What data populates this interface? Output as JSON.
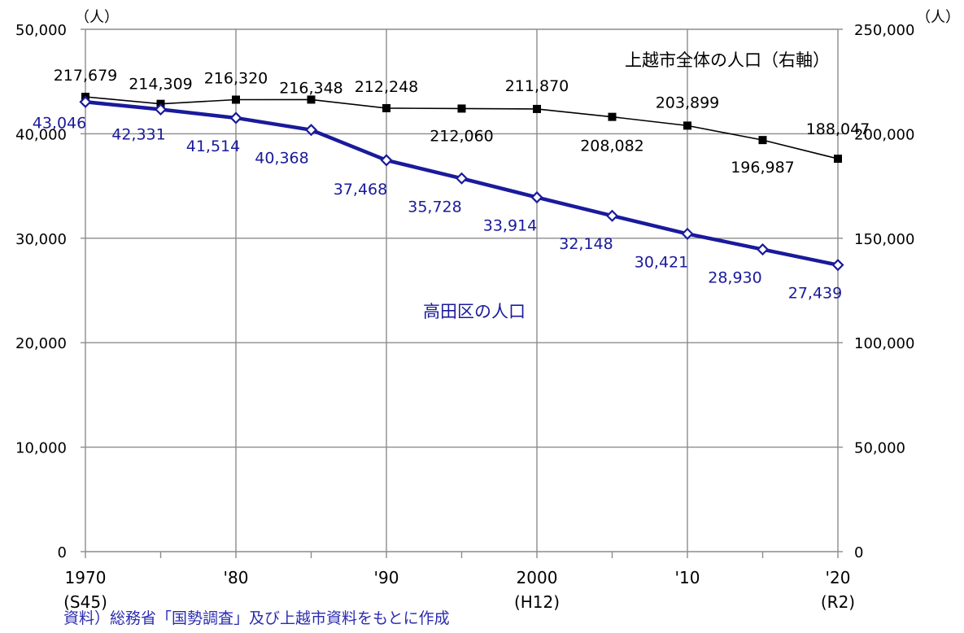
{
  "chart_data": {
    "type": "line",
    "x": [
      "1970",
      "1975",
      "1980",
      "1985",
      "1990",
      "1995",
      "2000",
      "2005",
      "2010",
      "2015",
      "2020"
    ],
    "x_tick_labels": [
      {
        "x": "1970",
        "lines": [
          "1970",
          "(S45)"
        ]
      },
      {
        "x": "1980",
        "lines": [
          "'80"
        ]
      },
      {
        "x": "1990",
        "lines": [
          "'90"
        ]
      },
      {
        "x": "2000",
        "lines": [
          "2000",
          "(H12)"
        ]
      },
      {
        "x": "2010",
        "lines": [
          "'10"
        ]
      },
      {
        "x": "2020",
        "lines": [
          "'20",
          "(R2)"
        ]
      }
    ],
    "y_left": {
      "unit": "（人）",
      "range": [
        0,
        50000
      ],
      "ticks": [
        "0",
        "10,000",
        "20,000",
        "30,000",
        "40,000",
        "50,000"
      ]
    },
    "y_right": {
      "unit": "（人）",
      "range": [
        0,
        250000
      ],
      "ticks": [
        "0",
        "50,000",
        "100,000",
        "150,000",
        "200,000",
        "250,000"
      ]
    },
    "grid": true,
    "series": [
      {
        "name": "上越市全体の人口（右軸）",
        "axis": "right",
        "color": "#000000",
        "marker": "filled-square",
        "values": [
          217679,
          214309,
          216320,
          216348,
          212248,
          212060,
          211870,
          208082,
          203899,
          196987,
          188047
        ],
        "labels": [
          "217,679",
          "214,309",
          "216,320",
          "216,348",
          "212,248",
          "212,060",
          "211,870",
          "208,082",
          "203,899",
          "196,987",
          "188,047"
        ]
      },
      {
        "name": "高田区の人口",
        "axis": "left",
        "color": "#1a1a9c",
        "marker": "hollow-diamond",
        "values": [
          43046,
          42331,
          41514,
          40368,
          37468,
          35728,
          33914,
          32148,
          30421,
          28930,
          27439
        ],
        "labels": [
          "43,046",
          "42,331",
          "41,514",
          "40,368",
          "37,468",
          "35,728",
          "33,914",
          "32,148",
          "30,421",
          "28,930",
          "27,439"
        ]
      }
    ]
  },
  "source_note": "資料）総務省「国勢調査」及び上越市資料をもとに作成"
}
